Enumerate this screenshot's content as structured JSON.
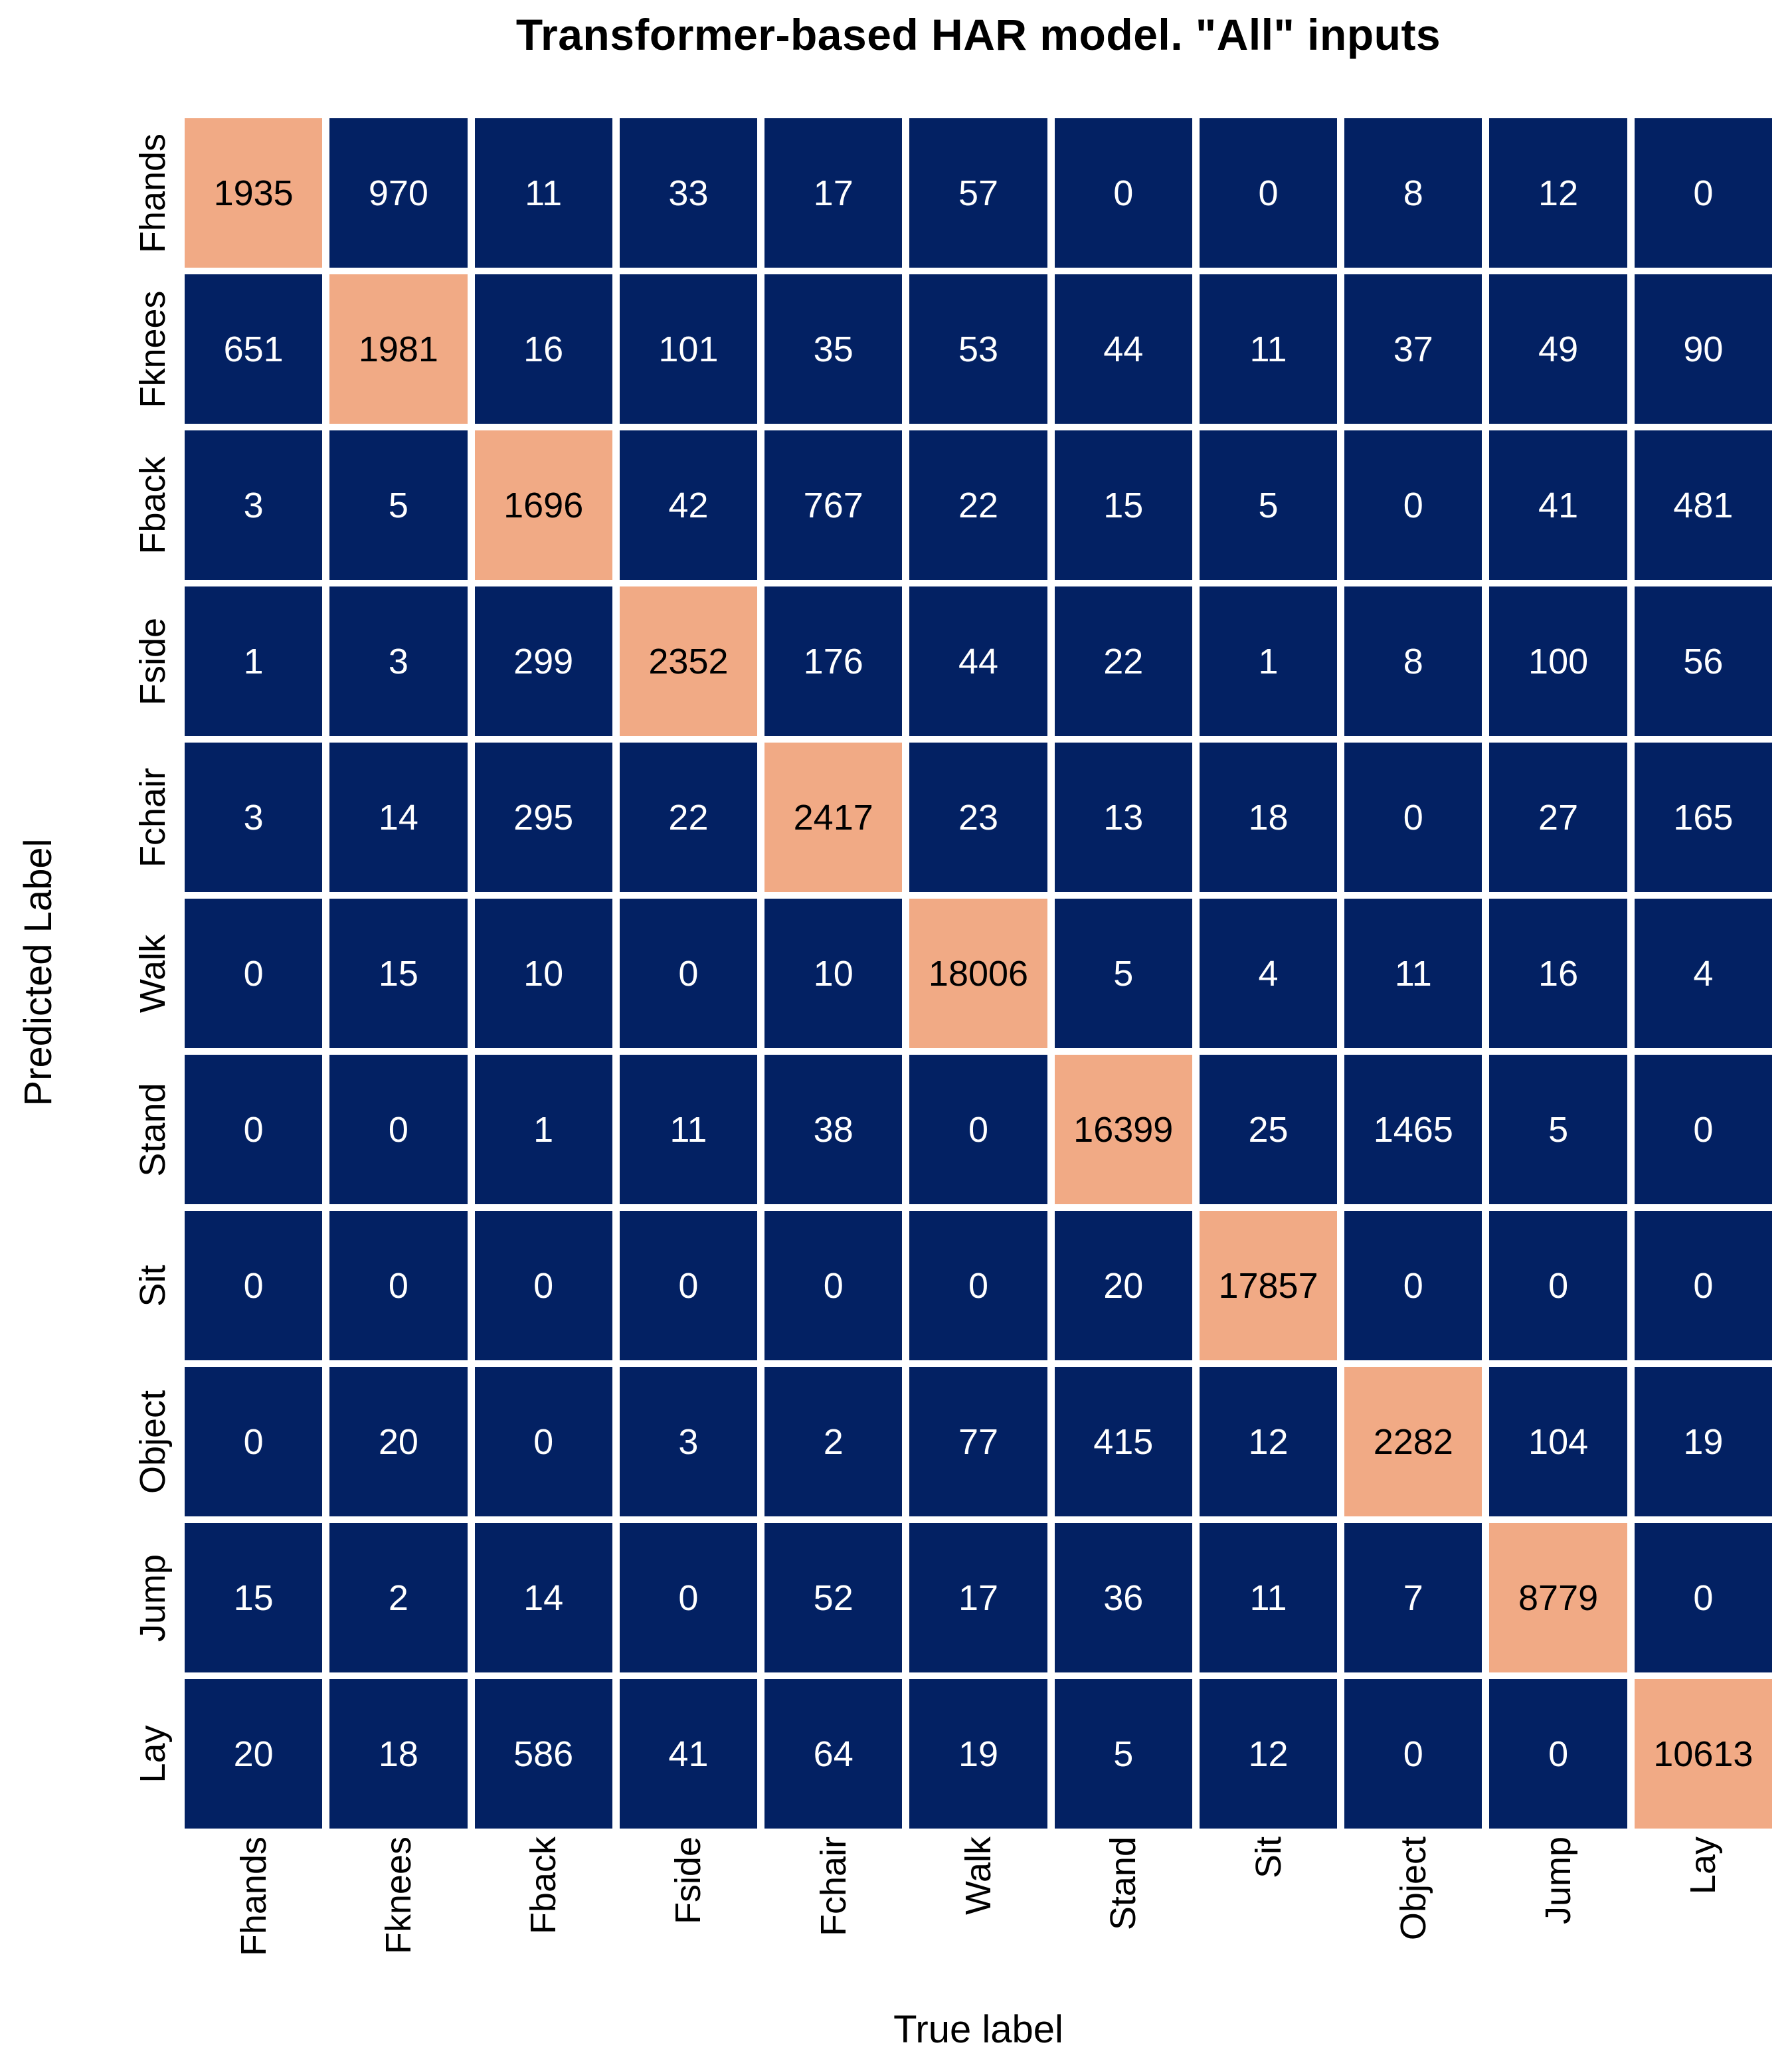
{
  "title": "Transformer-based HAR model. \"All\" inputs",
  "chart_data": {
    "type": "heatmap",
    "title": "Transformer-based HAR model. \"All\" inputs",
    "xlabel": "True label",
    "ylabel": "Predicted Label",
    "x_categories": [
      "Fhands",
      "Fknees",
      "Fback",
      "Fside",
      "Fchair",
      "Walk",
      "Stand",
      "Sit",
      "Object",
      "Jump",
      "Lay"
    ],
    "y_categories": [
      "Fhands",
      "Fknees",
      "Fback",
      "Fside",
      "Fchair",
      "Walk",
      "Stand",
      "Sit",
      "Object",
      "Jump",
      "Lay"
    ],
    "matrix": [
      [
        1935,
        970,
        11,
        33,
        17,
        57,
        0,
        0,
        8,
        12,
        0
      ],
      [
        651,
        1981,
        16,
        101,
        35,
        53,
        44,
        11,
        37,
        49,
        90
      ],
      [
        3,
        5,
        1696,
        42,
        767,
        22,
        15,
        5,
        0,
        41,
        481
      ],
      [
        1,
        3,
        299,
        2352,
        176,
        44,
        22,
        1,
        8,
        100,
        56
      ],
      [
        3,
        14,
        295,
        22,
        2417,
        23,
        13,
        18,
        0,
        27,
        165
      ],
      [
        0,
        15,
        10,
        0,
        10,
        18006,
        5,
        4,
        11,
        16,
        4
      ],
      [
        0,
        0,
        1,
        11,
        38,
        0,
        16399,
        25,
        1465,
        5,
        0
      ],
      [
        0,
        0,
        0,
        0,
        0,
        0,
        20,
        17857,
        0,
        0,
        0
      ],
      [
        0,
        20,
        0,
        3,
        2,
        77,
        415,
        12,
        2282,
        104,
        19
      ],
      [
        15,
        2,
        14,
        0,
        52,
        17,
        36,
        11,
        7,
        8779,
        0
      ],
      [
        20,
        18,
        586,
        41,
        64,
        19,
        5,
        12,
        0,
        0,
        10613
      ]
    ],
    "highlight": "diagonal",
    "legend": "none",
    "grid_gap_color": "#ffffff",
    "cell_color": "#032163",
    "diagonal_color": "#F1AA85",
    "value_text_color": "#FFFFFF",
    "diagonal_text_color": "#000000",
    "tick_text_color": "#000000"
  }
}
